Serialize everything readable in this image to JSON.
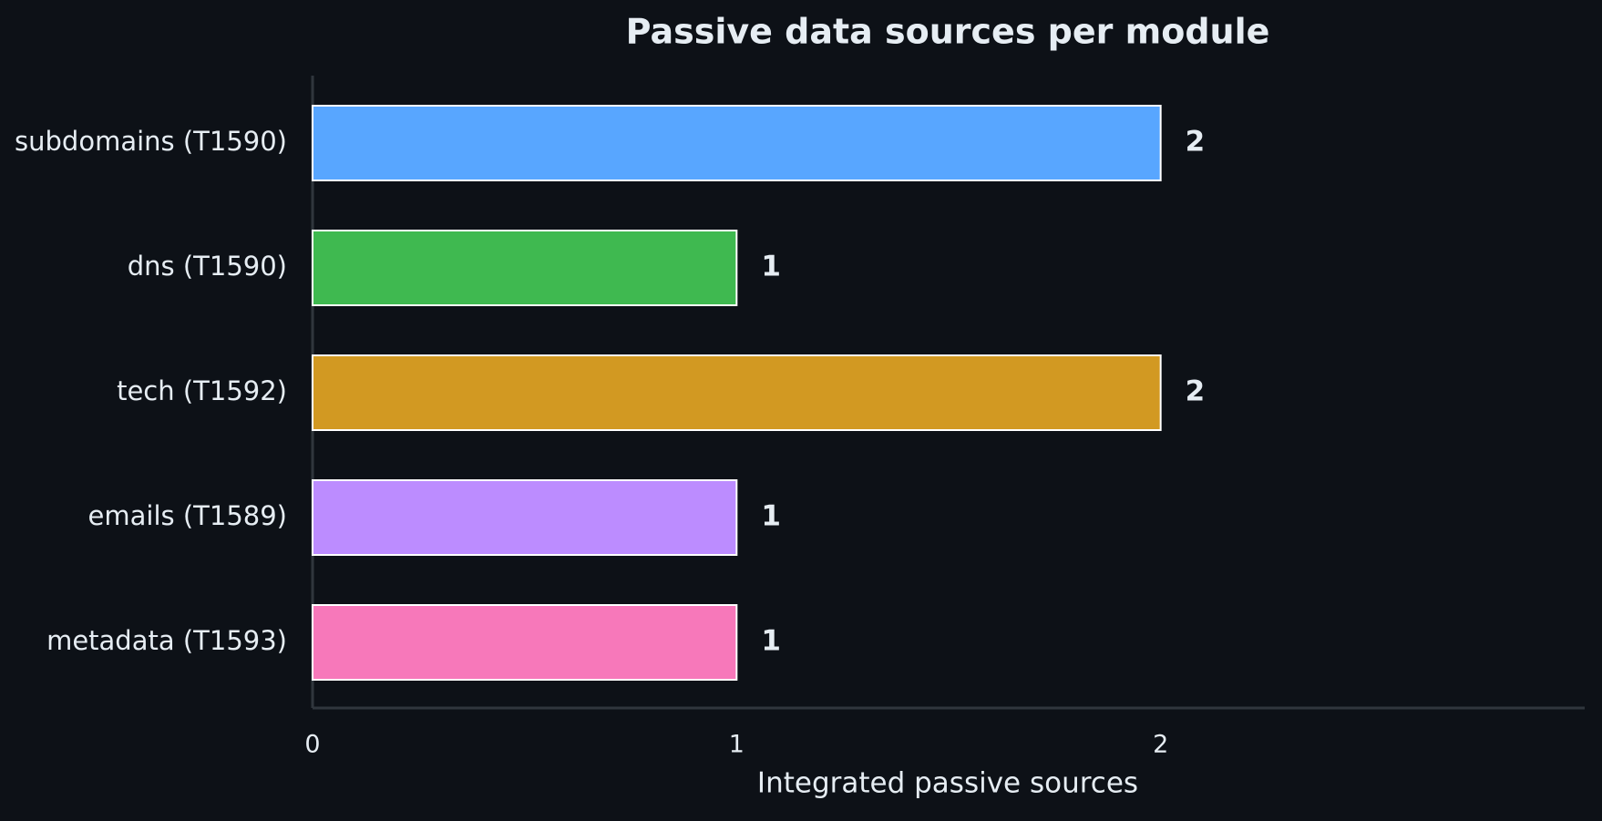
{
  "chart_data": {
    "type": "barh",
    "title": "Passive data sources per module",
    "categories": [
      "subdomains (T1590)",
      "dns (T1590)",
      "tech (T1592)",
      "emails (T1589)",
      "metadata (T1593)"
    ],
    "values": [
      2,
      1,
      2,
      1,
      1
    ],
    "colors": [
      "#58a6ff",
      "#3fb950",
      "#d29922",
      "#bc8cff",
      "#f778ba"
    ],
    "xlabel": "Integrated passive sources",
    "xlim": [
      0,
      3
    ],
    "xticks": [
      0,
      1,
      2
    ],
    "grid": false
  }
}
